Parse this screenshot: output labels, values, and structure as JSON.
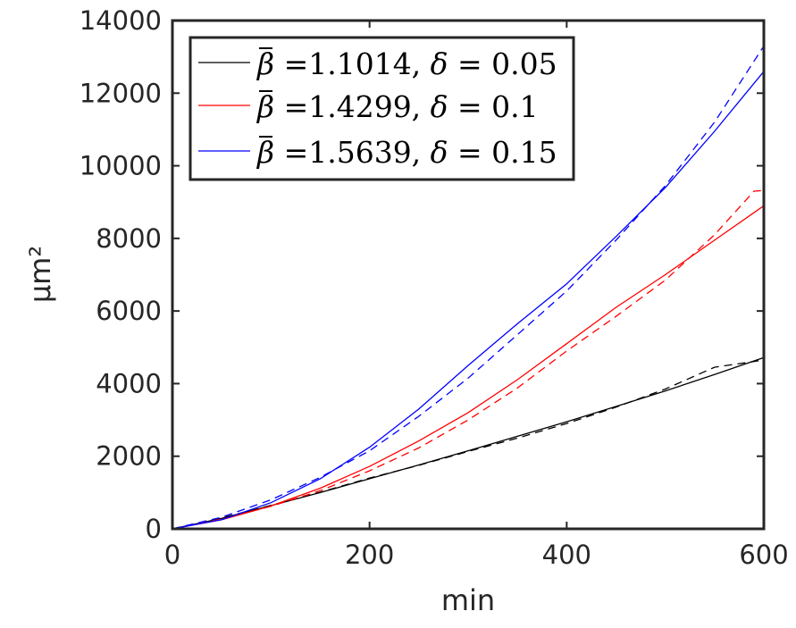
{
  "chart_data": {
    "type": "line",
    "xlabel": "min",
    "ylabel": "μm²",
    "xlim": [
      0,
      600
    ],
    "ylim": [
      0,
      14000
    ],
    "xticks": [
      0,
      200,
      400,
      600
    ],
    "yticks": [
      0,
      2000,
      4000,
      6000,
      8000,
      10000,
      12000,
      14000
    ],
    "grid": false,
    "legend_position": "top-left",
    "series": [
      {
        "name": "β̄ =1.1014, δ = 0.05",
        "legend_parts": {
          "val": "1.1014",
          "delta": "0.05"
        },
        "color": "#000000",
        "model_x": [
          0,
          50,
          100,
          150,
          200,
          250,
          300,
          350,
          400,
          450,
          500,
          550,
          600
        ],
        "model_y": [
          0,
          290,
          640,
          1000,
          1380,
          1760,
          2150,
          2550,
          2950,
          3370,
          3800,
          4250,
          4720
        ],
        "data_x": [
          0,
          50,
          100,
          150,
          200,
          250,
          300,
          350,
          400,
          450,
          500,
          550,
          575,
          600
        ],
        "data_y": [
          0,
          300,
          650,
          1010,
          1400,
          1750,
          2130,
          2500,
          2900,
          3350,
          3850,
          4450,
          4550,
          4650
        ]
      },
      {
        "name": "β̄ =1.4299, δ = 0.1",
        "legend_parts": {
          "val": "1.4299",
          "delta": "0.1"
        },
        "color": "#ff0000",
        "model_x": [
          0,
          50,
          100,
          150,
          200,
          250,
          300,
          350,
          400,
          450,
          500,
          550,
          600
        ],
        "model_y": [
          0,
          250,
          630,
          1120,
          1720,
          2420,
          3200,
          4110,
          5100,
          6100,
          7000,
          7950,
          8900
        ],
        "data_x": [
          0,
          50,
          100,
          150,
          200,
          250,
          300,
          350,
          400,
          450,
          500,
          550,
          590,
          600
        ],
        "data_y": [
          0,
          270,
          620,
          1050,
          1600,
          2230,
          3000,
          3880,
          4900,
          5850,
          6850,
          8100,
          9300,
          9320
        ]
      },
      {
        "name": "β̄ =1.5639, δ = 0.15",
        "legend_parts": {
          "val": "1.5639",
          "delta": "0.15"
        },
        "color": "#0000ff",
        "model_x": [
          0,
          50,
          100,
          150,
          200,
          250,
          300,
          350,
          400,
          450,
          500,
          550,
          600
        ],
        "model_y": [
          0,
          250,
          720,
          1380,
          2250,
          3300,
          4500,
          5650,
          6750,
          8050,
          9400,
          10950,
          12600
        ],
        "data_x": [
          0,
          50,
          100,
          150,
          200,
          250,
          300,
          350,
          400,
          450,
          500,
          550,
          600
        ],
        "data_y": [
          0,
          320,
          800,
          1420,
          2150,
          3100,
          4150,
          5350,
          6550,
          7950,
          9450,
          11200,
          13300
        ]
      }
    ]
  }
}
